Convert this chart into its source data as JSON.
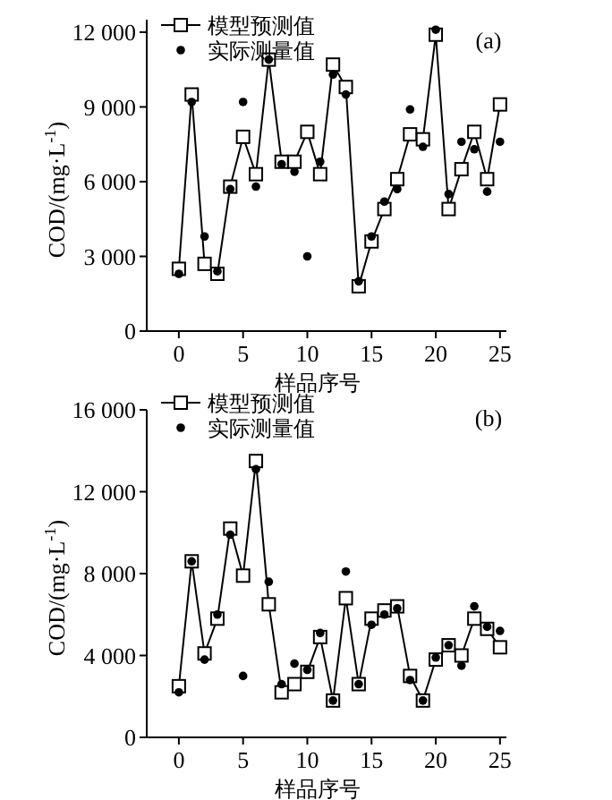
{
  "chart_data": [
    {
      "type": "line",
      "xlabel": "样品序号",
      "ylabel": "COD/(mg·L$^{-1}$)",
      "annotations": [
        "(a)"
      ],
      "legend": "top left",
      "xlim": [
        -2.5,
        25.5
      ],
      "xticks": [
        0,
        5,
        10,
        15,
        20,
        25
      ],
      "ylim": [
        0,
        12500
      ],
      "yticks": [
        0,
        {
          "value": 3000,
          "label": "3 000"
        },
        {
          "value": 6000,
          "label": "6 000"
        },
        {
          "value": 9000,
          "label": "9 000"
        },
        {
          "value": 12000,
          "label": "12 000"
        }
      ],
      "x": [
        0,
        1,
        2,
        3,
        4,
        5,
        6,
        7,
        8,
        9,
        10,
        11,
        12,
        13,
        14,
        15,
        16,
        17,
        18,
        19,
        20,
        21,
        22,
        23,
        24,
        25
      ],
      "series": [
        {
          "name": "模型预测值",
          "type": "line",
          "marker": "square",
          "color": "#000000",
          "values": [
            2500,
            9500,
            2700,
            2300,
            5800,
            7800,
            6300,
            10900,
            6800,
            6800,
            8000,
            6300,
            10700,
            9800,
            1800,
            3600,
            4900,
            6100,
            7900,
            7700,
            11900,
            4900,
            6500,
            8000,
            6100,
            9100
          ]
        },
        {
          "name": "实际测量值",
          "type": "scatter",
          "marker": "circle",
          "color": "#000000",
          "values": [
            2300,
            9200,
            3800,
            2400,
            5700,
            9200,
            5800,
            10900,
            6700,
            6400,
            3000,
            6800,
            10300,
            9500,
            2000,
            3800,
            5200,
            5700,
            8900,
            7400,
            12100,
            5500,
            7600,
            7300,
            5600,
            7600
          ]
        }
      ]
    },
    {
      "type": "line",
      "xlabel": "样品序号",
      "ylabel": "COD/(mg·L$^{-1}$)",
      "annotations": [
        "(b)"
      ],
      "legend": "top left",
      "xlim": [
        -2.5,
        25.5
      ],
      "xticks": [
        0,
        5,
        10,
        15,
        20,
        25
      ],
      "ylim": [
        0,
        16000
      ],
      "yticks": [
        0,
        {
          "value": 4000,
          "label": "4 000"
        },
        {
          "value": 8000,
          "label": "8 000"
        },
        {
          "value": 12000,
          "label": "12 000"
        },
        {
          "value": 16000,
          "label": "16 000"
        }
      ],
      "x": [
        0,
        1,
        2,
        3,
        4,
        5,
        6,
        7,
        8,
        9,
        10,
        11,
        12,
        13,
        14,
        15,
        16,
        17,
        18,
        19,
        20,
        21,
        22,
        23,
        24,
        25
      ],
      "series": [
        {
          "name": "模型预测值",
          "type": "line",
          "marker": "square",
          "color": "#000000",
          "values": [
            2500,
            8600,
            4100,
            5800,
            10200,
            7900,
            13500,
            6500,
            2200,
            2600,
            3200,
            4900,
            1800,
            6800,
            2600,
            5800,
            6200,
            6400,
            3000,
            1800,
            3800,
            4500,
            4000,
            5800,
            5300,
            4400
          ]
        },
        {
          "name": "实际测量值",
          "type": "scatter",
          "marker": "circle",
          "color": "#000000",
          "values": [
            2200,
            8600,
            3800,
            6000,
            9900,
            3000,
            13100,
            7600,
            2600,
            3600,
            3300,
            5100,
            1800,
            8100,
            2600,
            5500,
            6000,
            6300,
            2800,
            1800,
            3900,
            4500,
            3500,
            6400,
            5400,
            5200
          ]
        }
      ]
    }
  ]
}
